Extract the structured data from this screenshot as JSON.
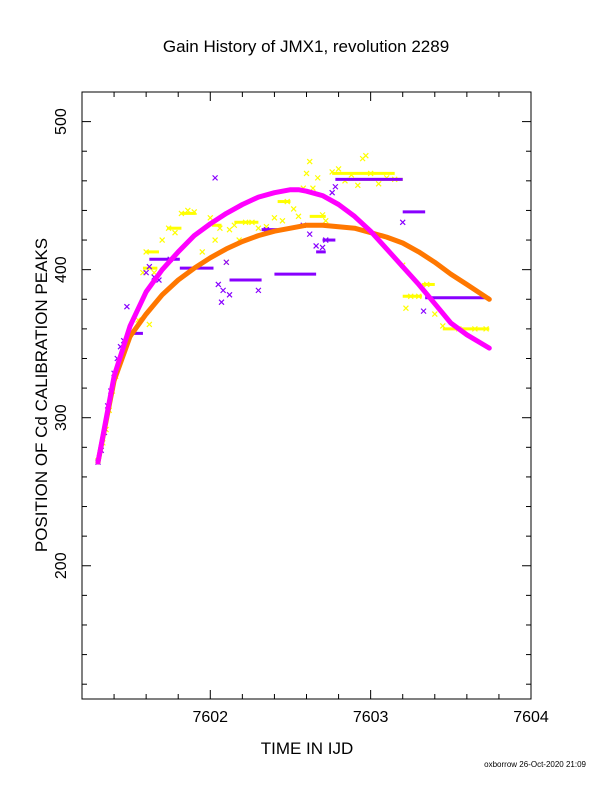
{
  "chart_data": {
    "type": "scatter",
    "title": "Gain History of JMX1, revolution 2289",
    "xlabel": "TIME IN IJD",
    "ylabel": "POSITION OF Cd CALIBRATION PEAKS",
    "xlim": [
      7601.2,
      7604.0
    ],
    "ylim": [
      110,
      520
    ],
    "xticks": [
      7602,
      7603,
      7604
    ],
    "xtick_labels": [
      "7602",
      "7603",
      "7604"
    ],
    "yticks": [
      200,
      300,
      400,
      500
    ],
    "ytick_labels": [
      "200",
      "300",
      "400",
      "500"
    ],
    "grid": false,
    "legend": "none",
    "series": [
      {
        "marker": "x",
        "color": "#ffff00",
        "points": [
          [
            7601.3,
            271
          ],
          [
            7601.33,
            283
          ],
          [
            7601.35,
            292
          ],
          [
            7601.37,
            305
          ],
          [
            7601.39,
            318
          ],
          [
            7601.41,
            328
          ],
          [
            7601.43,
            338
          ],
          [
            7601.46,
            347
          ],
          [
            7601.5,
            356
          ],
          [
            7601.55,
            366
          ],
          [
            7601.58,
            398
          ],
          [
            7601.6,
            412
          ],
          [
            7601.62,
            363
          ],
          [
            7601.65,
            398
          ],
          [
            7601.7,
            420
          ],
          [
            7601.74,
            428
          ],
          [
            7601.78,
            425
          ],
          [
            7601.82,
            438
          ],
          [
            7601.86,
            440
          ],
          [
            7601.9,
            439
          ],
          [
            7601.95,
            412
          ],
          [
            7602.0,
            435
          ],
          [
            7602.03,
            420
          ],
          [
            7602.06,
            428
          ],
          [
            7602.1,
            405
          ],
          [
            7602.12,
            427
          ],
          [
            7602.15,
            430
          ],
          [
            7602.18,
            420
          ],
          [
            7602.22,
            432
          ],
          [
            7602.26,
            432
          ],
          [
            7602.3,
            428
          ],
          [
            7602.35,
            429
          ],
          [
            7602.4,
            435
          ],
          [
            7602.45,
            433
          ],
          [
            7602.48,
            446
          ],
          [
            7602.52,
            441
          ],
          [
            7602.55,
            436
          ],
          [
            7602.58,
            455
          ],
          [
            7602.6,
            465
          ],
          [
            7602.62,
            473
          ],
          [
            7602.64,
            455
          ],
          [
            7602.67,
            462
          ],
          [
            7602.7,
            437
          ],
          [
            7602.72,
            433
          ],
          [
            7602.76,
            466
          ],
          [
            7602.8,
            468
          ],
          [
            7602.84,
            460
          ],
          [
            7602.88,
            464
          ],
          [
            7602.92,
            457
          ],
          [
            7602.95,
            475
          ],
          [
            7602.97,
            477
          ],
          [
            7603.0,
            465
          ],
          [
            7603.05,
            458
          ],
          [
            7603.1,
            462
          ],
          [
            7603.15,
            461
          ],
          [
            7603.2,
            403
          ],
          [
            7603.22,
            374
          ],
          [
            7603.25,
            382
          ],
          [
            7603.3,
            382
          ],
          [
            7603.35,
            390
          ],
          [
            7603.4,
            370
          ],
          [
            7603.45,
            362
          ],
          [
            7603.55,
            360
          ],
          [
            7603.65,
            360
          ],
          [
            7603.72,
            360
          ]
        ],
        "segments": [
          [
            7601.58,
            7601.67,
            401
          ],
          [
            7601.6,
            7601.68,
            412
          ],
          [
            7601.73,
            7601.82,
            428
          ],
          [
            7601.82,
            7601.91,
            438
          ],
          [
            7602.01,
            7602.07,
            430
          ],
          [
            7602.15,
            7602.3,
            432
          ],
          [
            7602.42,
            7602.5,
            446
          ],
          [
            7602.62,
            7602.72,
            436
          ],
          [
            7602.76,
            7603.15,
            465
          ],
          [
            7602.85,
            7603.2,
            461
          ],
          [
            7603.2,
            7603.32,
            382
          ],
          [
            7603.32,
            7603.4,
            390
          ],
          [
            7603.45,
            7603.74,
            360
          ]
        ]
      },
      {
        "marker": "x",
        "color": "#8800ff",
        "points": [
          [
            7601.3,
            270
          ],
          [
            7601.32,
            278
          ],
          [
            7601.34,
            290
          ],
          [
            7601.36,
            308
          ],
          [
            7601.38,
            318
          ],
          [
            7601.4,
            330
          ],
          [
            7601.42,
            340
          ],
          [
            7601.44,
            348
          ],
          [
            7601.46,
            352
          ],
          [
            7601.48,
            375
          ],
          [
            7601.6,
            398
          ],
          [
            7601.62,
            402
          ],
          [
            7601.65,
            395
          ],
          [
            7601.68,
            393
          ],
          [
            7601.75,
            407
          ],
          [
            7602.03,
            462
          ],
          [
            7602.05,
            390
          ],
          [
            7602.07,
            378
          ],
          [
            7602.08,
            386
          ],
          [
            7602.1,
            405
          ],
          [
            7602.12,
            383
          ],
          [
            7602.3,
            386
          ],
          [
            7602.35,
            427
          ],
          [
            7602.58,
            430
          ],
          [
            7602.62,
            424
          ],
          [
            7602.66,
            416
          ],
          [
            7602.7,
            415
          ],
          [
            7602.72,
            420
          ],
          [
            7602.76,
            452
          ],
          [
            7602.78,
            456
          ],
          [
            7603.2,
            432
          ],
          [
            7603.33,
            372
          ]
        ],
        "segments": [
          [
            7601.48,
            7601.58,
            357
          ],
          [
            7601.62,
            7601.81,
            407
          ],
          [
            7601.81,
            7602.02,
            401
          ],
          [
            7602.12,
            7602.32,
            393
          ],
          [
            7602.32,
            7602.42,
            427
          ],
          [
            7602.4,
            7602.66,
            397
          ],
          [
            7602.66,
            7602.72,
            412
          ],
          [
            7602.7,
            7602.78,
            420
          ],
          [
            7602.78,
            7603.2,
            461
          ],
          [
            7603.2,
            7603.34,
            439
          ],
          [
            7603.34,
            7603.74,
            381
          ]
        ]
      }
    ],
    "fits": [
      {
        "color": "#ff00ff",
        "x": [
          7601.3,
          7601.4,
          7601.5,
          7601.6,
          7601.7,
          7601.8,
          7601.9,
          7602.0,
          7602.1,
          7602.2,
          7602.3,
          7602.4,
          7602.5,
          7602.55,
          7602.6,
          7602.7,
          7602.8,
          7602.9,
          7603.0,
          7603.1,
          7603.2,
          7603.3,
          7603.4,
          7603.5,
          7603.6,
          7603.74
        ],
        "y": [
          270,
          328,
          362,
          385,
          400,
          412,
          423,
          431,
          438,
          444,
          449,
          452,
          454,
          454,
          453,
          450,
          444,
          436,
          426,
          414,
          402,
          390,
          377,
          364,
          356,
          347
        ]
      },
      {
        "color": "#ff7700",
        "x": [
          7601.3,
          7601.4,
          7601.5,
          7601.6,
          7601.7,
          7601.8,
          7601.9,
          7602.0,
          7602.1,
          7602.2,
          7602.3,
          7602.4,
          7602.5,
          7602.6,
          7602.7,
          7602.8,
          7602.9,
          7603.0,
          7603.1,
          7603.2,
          7603.3,
          7603.4,
          7603.5,
          7603.6,
          7603.74
        ],
        "y": [
          270,
          325,
          355,
          370,
          383,
          393,
          401,
          408,
          414,
          419,
          423,
          426,
          428,
          430,
          430,
          429,
          428,
          425,
          422,
          418,
          412,
          405,
          397,
          390,
          380
        ]
      }
    ]
  },
  "footer": {
    "credit": "oxborrow 26-Oct-2020 21:09"
  }
}
